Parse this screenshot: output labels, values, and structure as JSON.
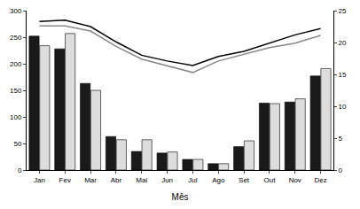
{
  "chart_data": {
    "type": "bar",
    "x_label": "Mês",
    "categories": [
      "Jan",
      "Fev",
      "Mar",
      "Abr",
      "Mai",
      "Jun",
      "Jul",
      "Ago",
      "Set",
      "Out",
      "Nov",
      "Dez"
    ],
    "series": [
      {
        "type": "bar",
        "color": "#1a1a1a",
        "values": [
          252,
          228,
          163,
          63,
          35,
          32,
          20,
          12,
          44,
          126,
          128,
          177
        ]
      },
      {
        "type": "bar",
        "color": "#dddddd",
        "values": [
          234,
          257,
          150,
          57,
          57,
          34,
          20,
          12,
          55,
          125,
          134,
          191
        ]
      },
      {
        "type": "line",
        "axis": "y2",
        "color": "#000000",
        "values": [
          23.3,
          23.5,
          22.5,
          20.1,
          18.0,
          17.1,
          16.4,
          17.8,
          18.6,
          19.9,
          21.2,
          22.2
        ]
      },
      {
        "type": "line",
        "axis": "y2",
        "color": "#888888",
        "values": [
          22.6,
          22.6,
          21.8,
          19.4,
          17.4,
          16.4,
          15.3,
          17.1,
          18.1,
          19.2,
          19.9,
          21.1
        ]
      }
    ],
    "ylim": [
      0,
      300
    ],
    "yticks": [
      0,
      50,
      100,
      150,
      200,
      250,
      300
    ],
    "y2lim": [
      0,
      25
    ],
    "y2ticks": [
      0,
      5,
      10,
      15,
      20,
      25
    ],
    "grid": false
  }
}
